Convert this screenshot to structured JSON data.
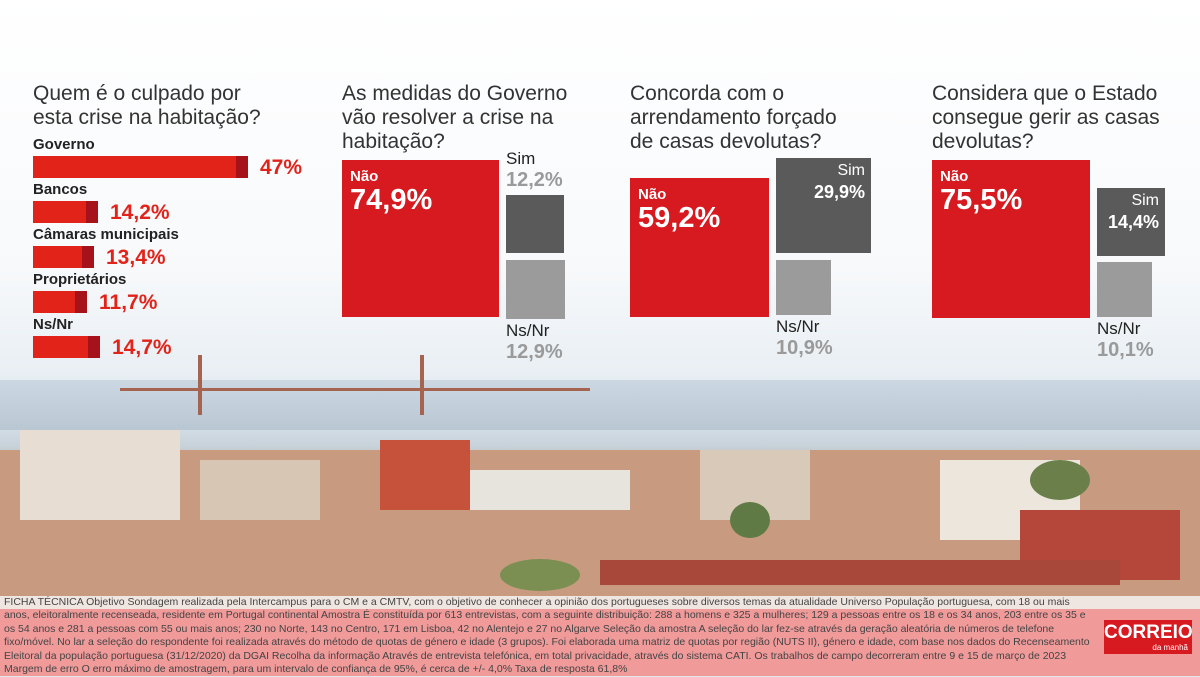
{
  "colors": {
    "red": "#d71920",
    "red_dark": "#a5121a",
    "dark_gray": "#5a5a5a",
    "light_gray": "#9b9b9b"
  },
  "chart_data": [
    {
      "type": "bar",
      "title": "Quem é o culpado por esta crise na habitação?",
      "categories": [
        "Governo",
        "Bancos",
        "Câmaras municipais",
        "Proprietários",
        "Ns/Nr"
      ],
      "values": [
        47,
        14.2,
        13.4,
        11.7,
        14.7
      ],
      "value_labels": [
        "47%",
        "14,2%",
        "13,4%",
        "11,7%",
        "14,7%"
      ]
    },
    {
      "type": "bar",
      "title": "As medidas do Governo vão resolver a crise na habitação?",
      "categories": [
        "Não",
        "Sim",
        "Ns/Nr"
      ],
      "values": [
        74.9,
        12.2,
        12.9
      ],
      "value_labels": [
        "74,9%",
        "12,2%",
        "12,9%"
      ]
    },
    {
      "type": "bar",
      "title": "Concorda com o arrendamento forçado de casas devolutas?",
      "categories": [
        "Não",
        "Sim",
        "Ns/Nr"
      ],
      "values": [
        59.2,
        29.9,
        10.9
      ],
      "value_labels": [
        "59,2%",
        "29,9%",
        "10,9%"
      ]
    },
    {
      "type": "bar",
      "title": "Considera que o Estado consegue gerir as casas devolutas?",
      "categories": [
        "Não",
        "Sim",
        "Ns/Nr"
      ],
      "values": [
        75.5,
        14.4,
        10.1
      ],
      "value_labels": [
        "75,5%",
        "14,4%",
        "10,1%"
      ]
    }
  ],
  "panel1": {
    "title_l1": "Quem é o culpado por",
    "title_l2": "esta crise na habitação?"
  },
  "panel2": {
    "title_l1": "As medidas do Governo",
    "title_l2": "vão resolver a crise na",
    "title_l3": "habitação?"
  },
  "panel3": {
    "title_l1": "Concorda com o",
    "title_l2": "arrendamento forçado",
    "title_l3": "de casas devolutas?"
  },
  "panel4": {
    "title_l1": "Considera que o Estado",
    "title_l2": "consegue gerir as casas",
    "title_l3": "devolutas?"
  },
  "footer": {
    "line1": "FICHA TÉCNICA Objetivo Sondagem realizada pela Intercampus para o CM e a CMTV, com o objetivo de conhecer a opinião dos portugueses sobre diversos temas da atualidade Universo População portuguesa, com 18 ou mais",
    "body": "anos, eleitoralmente recenseada, residente em Portugal continental Amostra É constituída por 613 entrevistas, com a seguinte distribuição: 288 a homens e 325 a mulheres; 129 a pessoas entre os 18 e os 34 anos, 203 entre os 35 e os 54 anos e 281 a pessoas com 55 ou mais anos; 230 no Norte, 143 no Centro, 171 em Lisboa, 42 no Alentejo e 27 no Algarve Seleção da amostra A seleção do lar fez-se através da geração aleatória de números de telefone fixo/móvel. No lar a seleção do respondente foi realizada através do método de quotas de género e idade (3 grupos). Foi elaborada uma matriz de quotas por região (NUTS II), género e idade, com base nos dados do Recenseamento Eleitoral da população portuguesa (31/12/2020) da DGAI Recolha da informação Através de entrevista telefónica, em total privacidade, através do sistema CATI. Os trabalhos de campo decorreram entre 9 e 15 de março de 2023 Margem de erro O erro máximo de amostragem, para um intervalo de confiança de 95%, é cerca de +/- 4,0% Taxa de resposta 61,8%"
  },
  "logo": {
    "name": "CORREIO",
    "sub": "da manhã"
  }
}
